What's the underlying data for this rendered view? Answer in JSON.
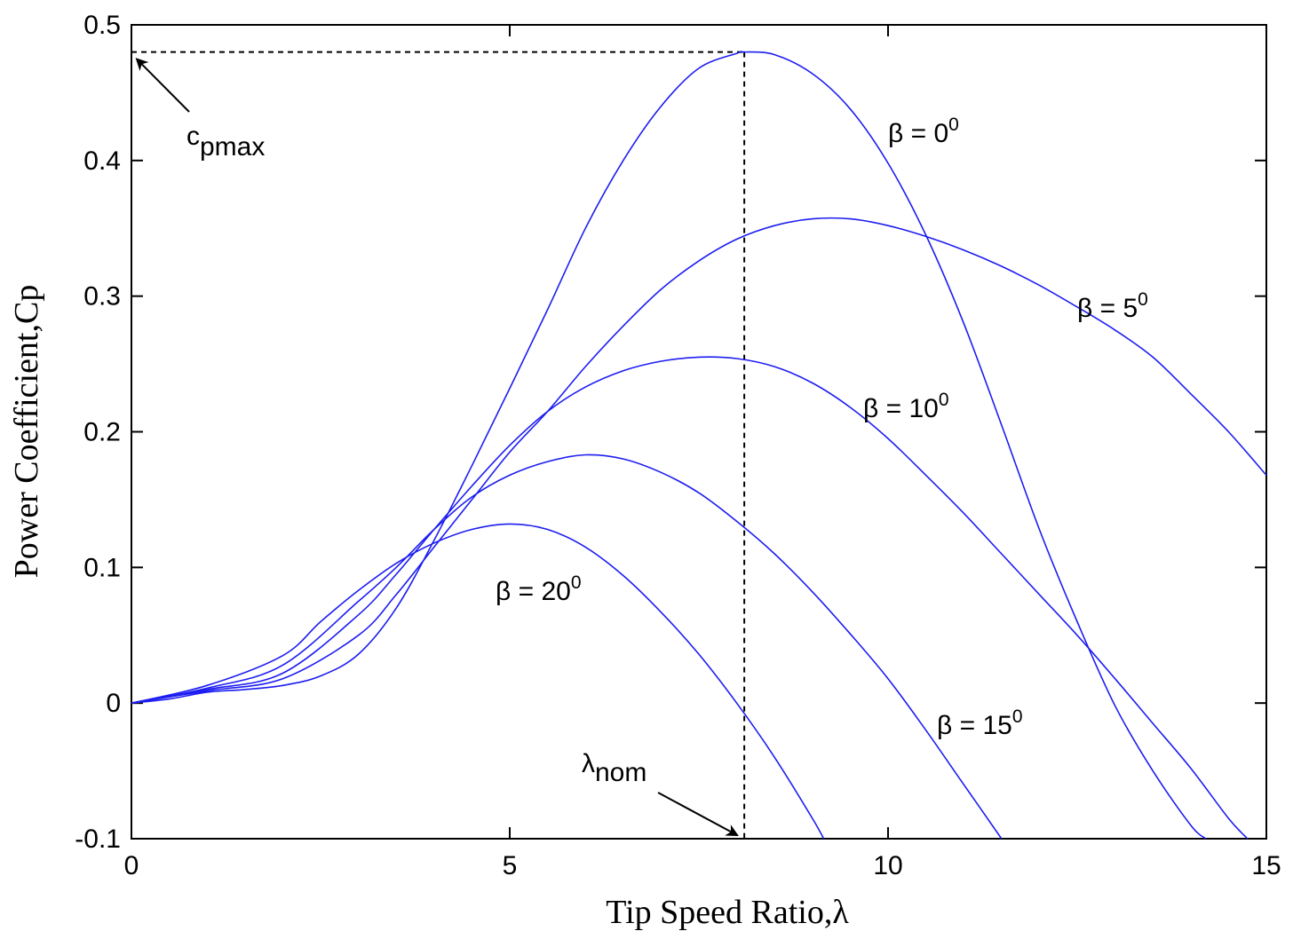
{
  "chart_data": {
    "type": "line",
    "xlabel": "Tip Speed Ratio,λ",
    "ylabel": "Power Coefficient,Cp",
    "xlim": [
      0,
      15
    ],
    "ylim": [
      -0.1,
      0.5
    ],
    "xticks": [
      0,
      5,
      10,
      15
    ],
    "yticks": [
      -0.1,
      0,
      0.1,
      0.2,
      0.3,
      0.4,
      0.5
    ],
    "xtick_labels": [
      "0",
      "5",
      "10",
      "15"
    ],
    "ytick_labels": [
      "-0.1",
      "0",
      "0.1",
      "0.2",
      "0.3",
      "0.4",
      "0.5"
    ],
    "grid": false,
    "colors": {
      "series": "#1d1df2",
      "reference": "#000000"
    },
    "series": [
      {
        "name": "β = 0⁰",
        "label_main": "β = 0",
        "label_sup": "0",
        "x": [
          0,
          0.5,
          1,
          1.5,
          2,
          2.5,
          3,
          3.5,
          4,
          4.5,
          5,
          5.5,
          6,
          6.5,
          7,
          7.5,
          8,
          8.1,
          8.5,
          9,
          9.5,
          10,
          10.5,
          11,
          11.5,
          12,
          12.5,
          13,
          13.5,
          14,
          14.2
        ],
        "y": [
          0,
          0.003,
          0.008,
          0.01,
          0.013,
          0.02,
          0.036,
          0.07,
          0.12,
          0.175,
          0.232,
          0.29,
          0.35,
          0.4,
          0.44,
          0.468,
          0.479,
          0.48,
          0.478,
          0.464,
          0.438,
          0.398,
          0.345,
          0.28,
          0.205,
          0.128,
          0.06,
          -0.002,
          -0.05,
          -0.09,
          -0.1
        ]
      },
      {
        "name": "β = 5⁰",
        "label_main": "β = 5",
        "label_sup": "0",
        "x": [
          0,
          1,
          2,
          3,
          3.5,
          4,
          4.5,
          5,
          5.5,
          6,
          6.5,
          7,
          7.5,
          8,
          8.5,
          9,
          9.5,
          10,
          10.5,
          11,
          11.5,
          12,
          12.5,
          13,
          13.5,
          14,
          14.5,
          15
        ],
        "y": [
          0,
          0.009,
          0.018,
          0.05,
          0.08,
          0.115,
          0.15,
          0.185,
          0.215,
          0.248,
          0.278,
          0.305,
          0.326,
          0.342,
          0.352,
          0.357,
          0.357,
          0.352,
          0.344,
          0.334,
          0.322,
          0.308,
          0.292,
          0.275,
          0.255,
          0.228,
          0.2,
          0.168
        ]
      },
      {
        "name": "β = 10⁰",
        "label_main": "β = 10",
        "label_sup": "0",
        "x": [
          0,
          1,
          2,
          3,
          3.5,
          4,
          4.5,
          5,
          5.5,
          6,
          6.5,
          7,
          7.5,
          8,
          8.5,
          9,
          9.5,
          10,
          10.5,
          11,
          11.5,
          12,
          12.5,
          13,
          13.5,
          14,
          14.5,
          14.75
        ],
        "y": [
          0,
          0.01,
          0.022,
          0.065,
          0.095,
          0.128,
          0.16,
          0.19,
          0.215,
          0.233,
          0.245,
          0.252,
          0.255,
          0.254,
          0.248,
          0.236,
          0.218,
          0.195,
          0.168,
          0.14,
          0.11,
          0.08,
          0.05,
          0.018,
          -0.015,
          -0.048,
          -0.085,
          -0.1
        ]
      },
      {
        "name": "β = 15⁰",
        "label_main": "β = 15",
        "label_sup": "0",
        "x": [
          0,
          1,
          2,
          3,
          3.5,
          4,
          4.5,
          5,
          5.5,
          6,
          6.5,
          7,
          7.5,
          8,
          8.5,
          9,
          9.5,
          10,
          10.5,
          11,
          11.5
        ],
        "y": [
          0,
          0.011,
          0.028,
          0.075,
          0.1,
          0.128,
          0.152,
          0.168,
          0.178,
          0.183,
          0.18,
          0.17,
          0.155,
          0.134,
          0.11,
          0.082,
          0.051,
          0.018,
          -0.02,
          -0.06,
          -0.1
        ]
      },
      {
        "name": "β = 20⁰",
        "label_main": "β = 20",
        "label_sup": "0",
        "x": [
          0,
          1,
          2,
          2.5,
          3,
          3.5,
          4,
          4.5,
          5,
          5.5,
          6,
          6.5,
          7,
          7.5,
          8,
          8.5,
          9,
          9.15
        ],
        "y": [
          0,
          0.013,
          0.035,
          0.06,
          0.083,
          0.103,
          0.118,
          0.128,
          0.132,
          0.128,
          0.115,
          0.094,
          0.067,
          0.036,
          0.0,
          -0.04,
          -0.085,
          -0.1
        ]
      }
    ],
    "reference_lines": {
      "cp_max": 0.48,
      "lambda_nom": 8.1
    },
    "annotations": {
      "cpmax": {
        "main": "c",
        "sub": "pmax",
        "x": 0,
        "y": 0.48
      },
      "lambda_nom": {
        "main": "λ",
        "sub": "nom",
        "x": 8.1,
        "y": -0.1
      }
    }
  }
}
